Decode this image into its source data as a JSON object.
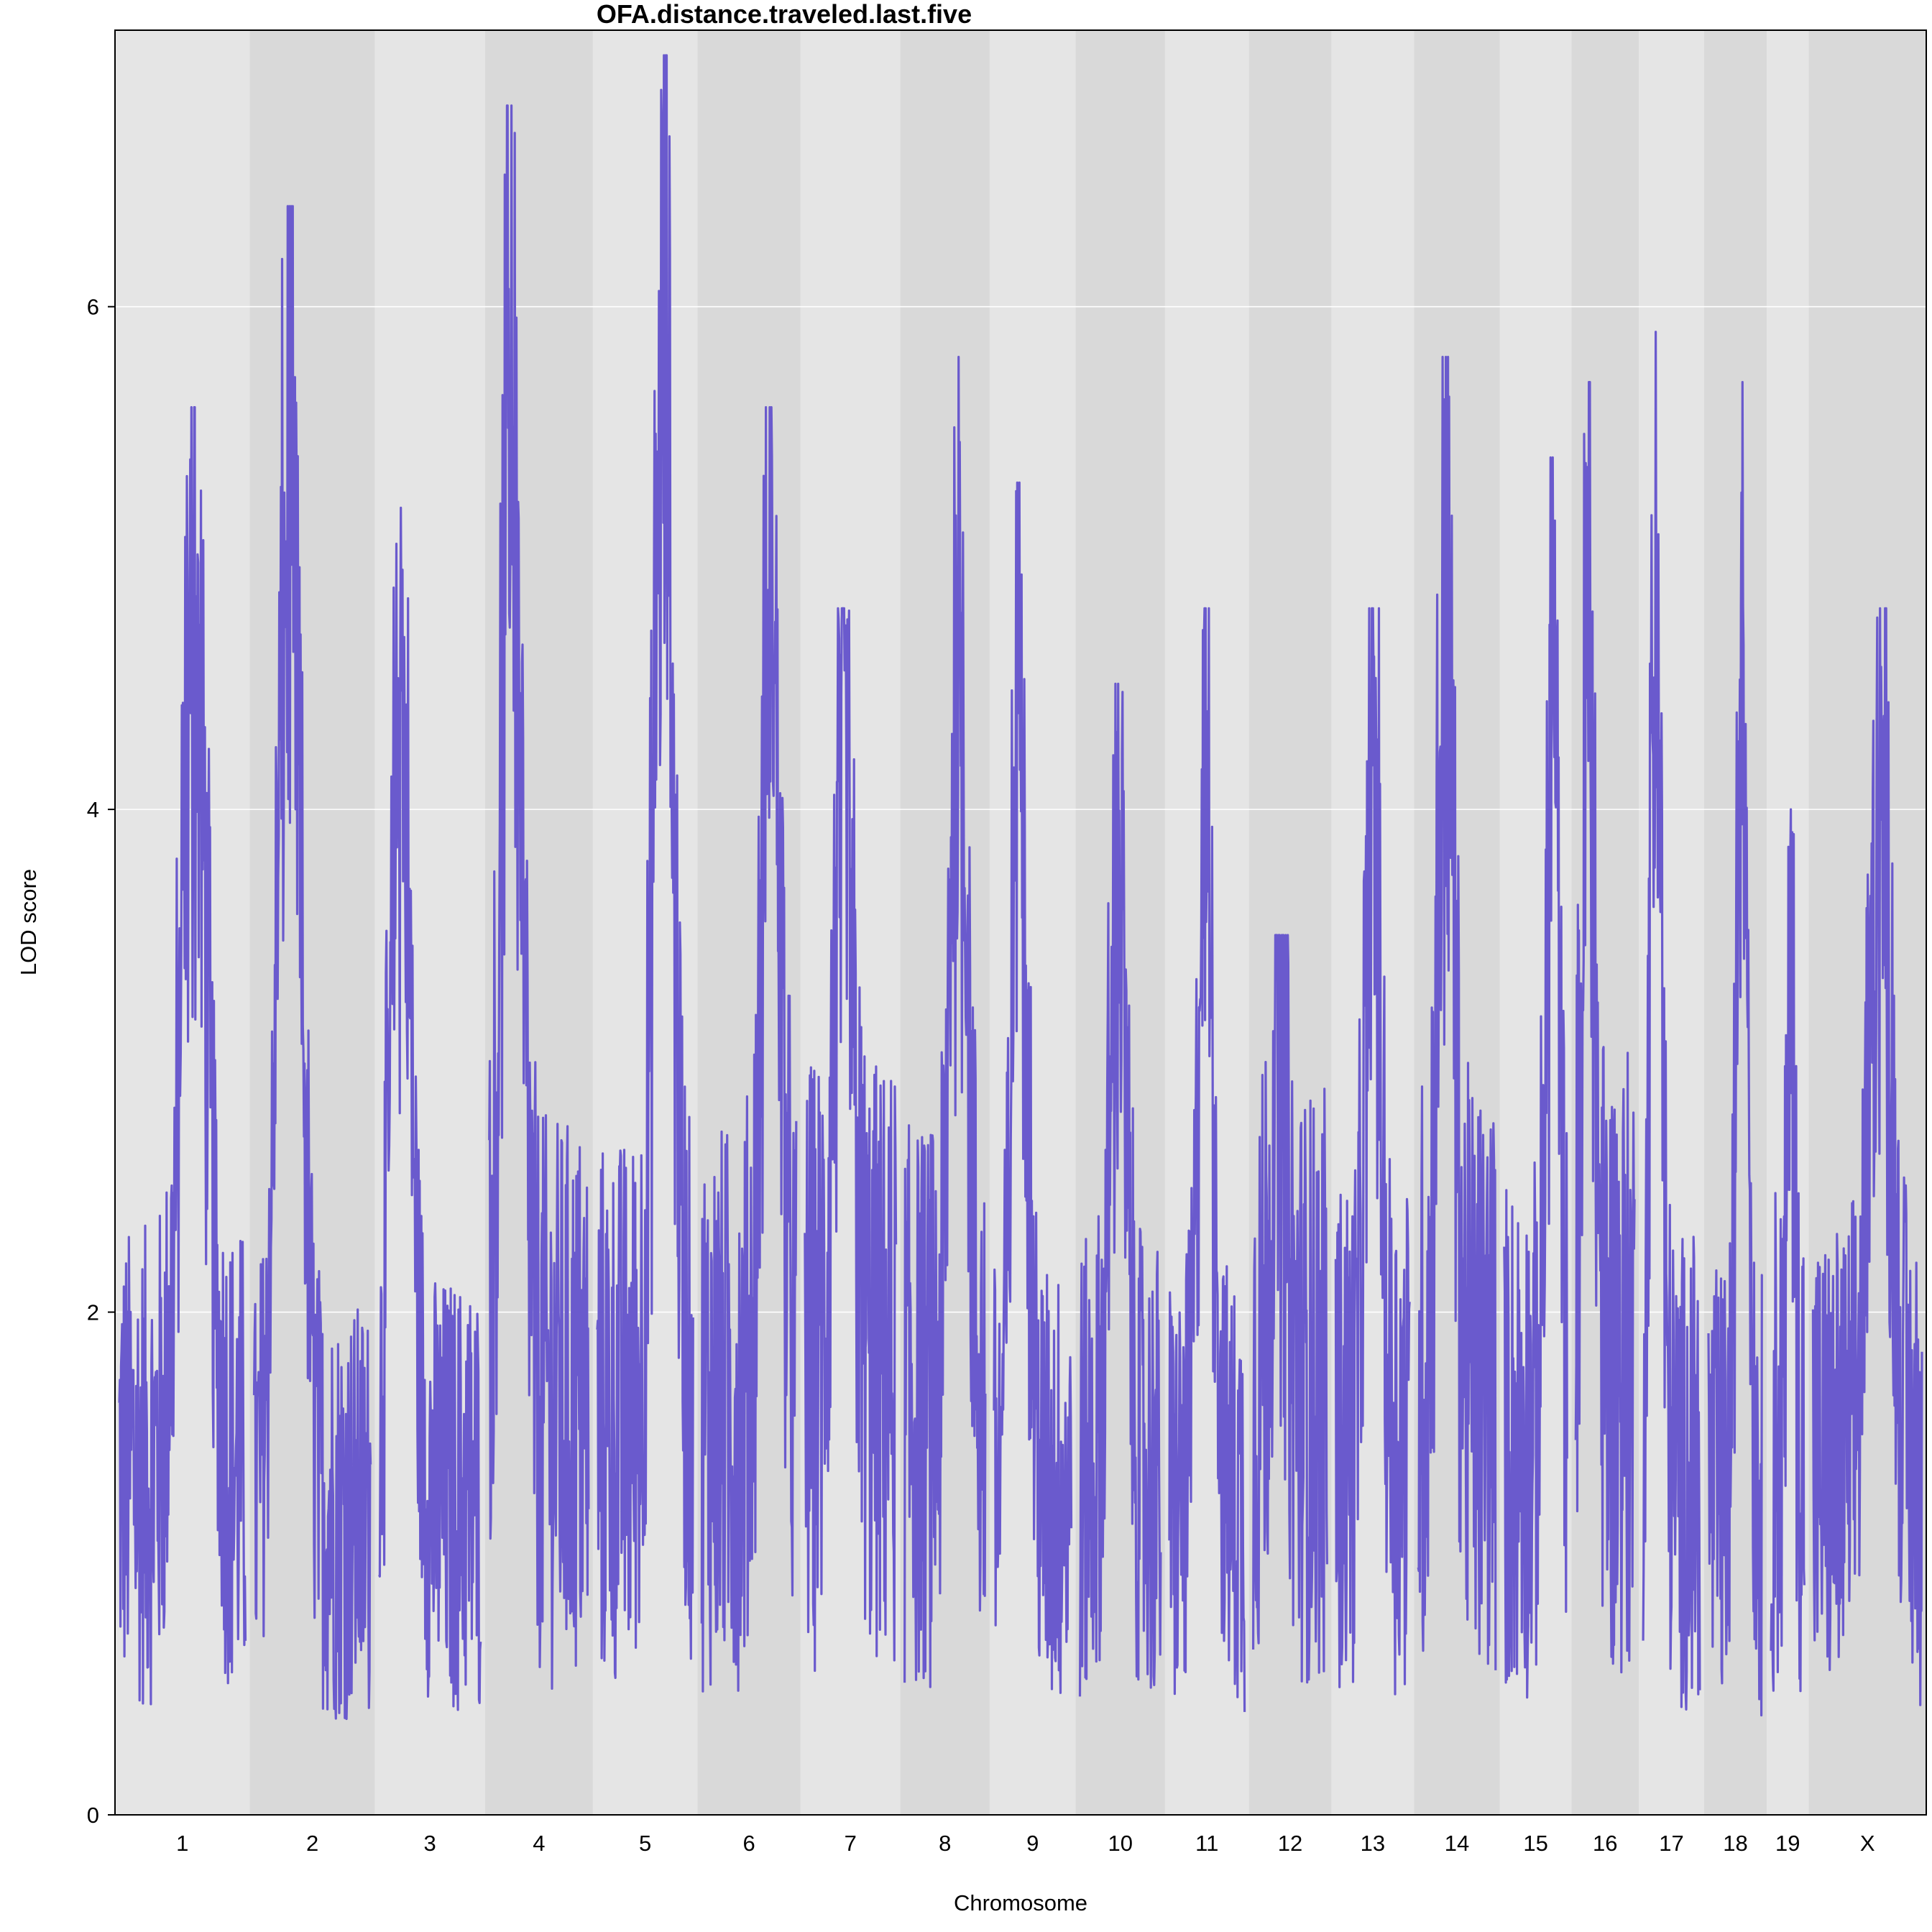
{
  "chart_data": {
    "type": "line",
    "title": "OFA.distance.traveled.last.five",
    "xlabel": "Chromosome",
    "ylabel": "LOD score",
    "ylim": [
      0,
      7.1
    ],
    "yticks": [
      0,
      2,
      4,
      6
    ],
    "grid": "horizontal",
    "colors": {
      "line": "#6a5acd",
      "band_light": "#e5e5e5",
      "band_dark": "#d9d9d9",
      "grid": "#ffffff"
    },
    "chromosomes": [
      {
        "label": "1",
        "length_mb": 196
      },
      {
        "label": "2",
        "length_mb": 182
      },
      {
        "label": "3",
        "length_mb": 160
      },
      {
        "label": "4",
        "length_mb": 157
      },
      {
        "label": "5",
        "length_mb": 152
      },
      {
        "label": "6",
        "length_mb": 150
      },
      {
        "label": "7",
        "length_mb": 145
      },
      {
        "label": "8",
        "length_mb": 130
      },
      {
        "label": "9",
        "length_mb": 125
      },
      {
        "label": "10",
        "length_mb": 130
      },
      {
        "label": "11",
        "length_mb": 122
      },
      {
        "label": "12",
        "length_mb": 120
      },
      {
        "label": "13",
        "length_mb": 120
      },
      {
        "label": "14",
        "length_mb": 125
      },
      {
        "label": "15",
        "length_mb": 104
      },
      {
        "label": "16",
        "length_mb": 98
      },
      {
        "label": "17",
        "length_mb": 95
      },
      {
        "label": "18",
        "length_mb": 91
      },
      {
        "label": "19",
        "length_mb": 61
      },
      {
        "label": "X",
        "length_mb": 171
      }
    ],
    "peak_lod": [
      5.6,
      6.4,
      5.2,
      6.8,
      7.0,
      5.6,
      4.8,
      5.8,
      5.3,
      4.5,
      4.8,
      3.5,
      4.8,
      5.8,
      5.4,
      5.7,
      5.9,
      5.7,
      4.0,
      4.8
    ]
  }
}
